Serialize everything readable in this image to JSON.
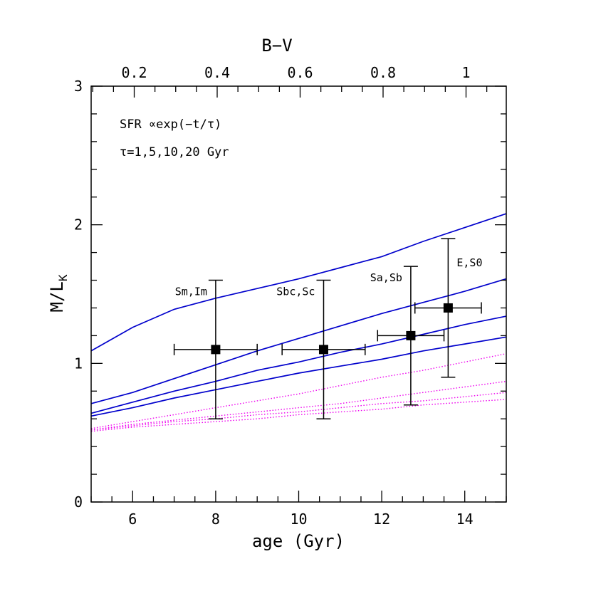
{
  "chart_data": {
    "type": "line",
    "xlabel": "age (Gyr)",
    "ylabel_main": "M/L",
    "ylabel_sub": "K",
    "top_axis_label": "B−V",
    "xlim": [
      5,
      15
    ],
    "ylim": [
      0,
      3
    ],
    "x_ticks": [
      "6",
      "8",
      "10",
      "12",
      "14"
    ],
    "y_ticks": [
      "0",
      "1",
      "2",
      "3"
    ],
    "top_ticks": [
      "0.2",
      "0.4",
      "0.6",
      "0.8",
      "1"
    ],
    "annotations": {
      "sfr": "SFR ∝exp(−t/τ)",
      "tau": "τ=1,5,10,20 Gyr"
    },
    "solid_color": "#0000cc",
    "dotted_color": "#ee00ee",
    "series": [
      {
        "style": "solid",
        "x": [
          5,
          6,
          7,
          8,
          9,
          10,
          11,
          12,
          13,
          14,
          15
        ],
        "y": [
          1.09,
          1.26,
          1.39,
          1.47,
          1.54,
          1.61,
          1.69,
          1.77,
          1.88,
          1.98,
          2.08
        ]
      },
      {
        "style": "solid",
        "x": [
          5,
          6,
          7,
          8,
          9,
          10,
          11,
          12,
          13,
          14,
          15
        ],
        "y": [
          0.71,
          0.79,
          0.89,
          0.99,
          1.09,
          1.18,
          1.27,
          1.36,
          1.44,
          1.52,
          1.61
        ]
      },
      {
        "style": "solid",
        "x": [
          5,
          6,
          7,
          8,
          9,
          10,
          11,
          12,
          13,
          14,
          15
        ],
        "y": [
          0.64,
          0.72,
          0.8,
          0.87,
          0.95,
          1.01,
          1.08,
          1.14,
          1.21,
          1.28,
          1.34
        ]
      },
      {
        "style": "solid",
        "x": [
          5,
          6,
          7,
          8,
          9,
          10,
          11,
          12,
          13,
          14,
          15
        ],
        "y": [
          0.62,
          0.68,
          0.75,
          0.81,
          0.87,
          0.93,
          0.98,
          1.03,
          1.09,
          1.14,
          1.19
        ]
      },
      {
        "style": "dotted",
        "x": [
          5,
          6,
          7,
          8,
          9,
          10,
          11,
          12,
          13,
          14,
          15
        ],
        "y": [
          0.53,
          0.58,
          0.63,
          0.68,
          0.73,
          0.78,
          0.84,
          0.9,
          0.95,
          1.01,
          1.07
        ]
      },
      {
        "style": "dotted",
        "x": [
          5,
          6,
          7,
          8,
          9,
          10,
          11,
          12,
          13,
          14,
          15
        ],
        "y": [
          0.52,
          0.56,
          0.59,
          0.62,
          0.65,
          0.68,
          0.71,
          0.75,
          0.79,
          0.83,
          0.87
        ]
      },
      {
        "style": "dotted",
        "x": [
          5,
          6,
          7,
          8,
          9,
          10,
          11,
          12,
          13,
          14,
          15
        ],
        "y": [
          0.52,
          0.55,
          0.58,
          0.6,
          0.63,
          0.65,
          0.68,
          0.71,
          0.73,
          0.76,
          0.79
        ]
      },
      {
        "style": "dotted",
        "x": [
          5,
          6,
          7,
          8,
          9,
          10,
          11,
          12,
          13,
          14,
          15
        ],
        "y": [
          0.51,
          0.54,
          0.56,
          0.58,
          0.6,
          0.63,
          0.65,
          0.67,
          0.7,
          0.72,
          0.74
        ]
      }
    ],
    "points": [
      {
        "label": "Sm,Im",
        "x": 8.0,
        "y": 1.1,
        "xerr": 1.0,
        "yerr_lo": 0.5,
        "yerr_hi": 0.5
      },
      {
        "label": "Sbc,Sc",
        "x": 10.6,
        "y": 1.1,
        "xerr": 1.0,
        "yerr_lo": 0.5,
        "yerr_hi": 0.5
      },
      {
        "label": "Sa,Sb",
        "x": 12.7,
        "y": 1.2,
        "xerr": 0.8,
        "yerr_lo": 0.5,
        "yerr_hi": 0.5
      },
      {
        "label": "E,S0",
        "x": 13.6,
        "y": 1.4,
        "xerr": 0.8,
        "yerr_lo": 0.5,
        "yerr_hi": 0.5
      }
    ]
  }
}
